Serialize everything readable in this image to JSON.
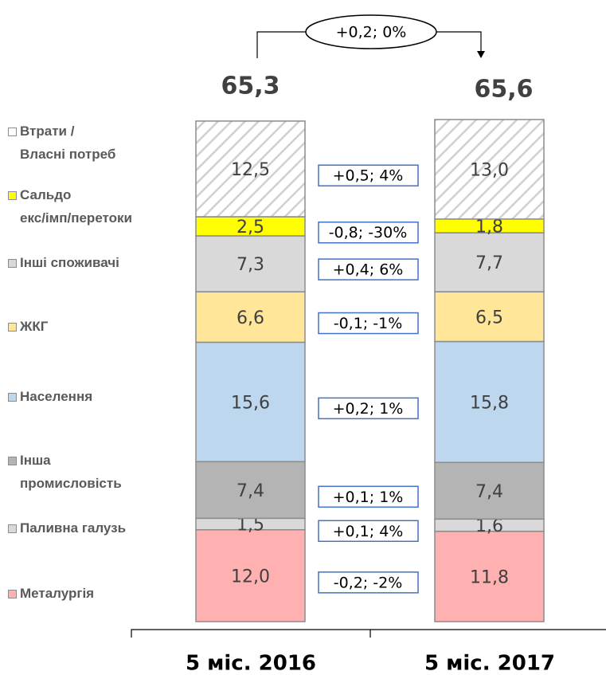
{
  "chart_data": {
    "type": "stacked-bar",
    "categories": [
      "5 міс. 2016",
      "5 міс. 2017"
    ],
    "series": [
      {
        "name": "Металургія",
        "color": "#ffb0b0",
        "values": [
          12.0,
          11.8
        ],
        "value_labels": [
          "12,0",
          "11,8"
        ]
      },
      {
        "name": "Паливна галузь",
        "color": "#d9d9d9",
        "values": [
          1.5,
          1.6
        ],
        "value_labels": [
          "1,5",
          "1,6"
        ]
      },
      {
        "name": "Інша\nпромисловість",
        "color": "#b4b4b4",
        "values": [
          7.4,
          7.4
        ],
        "value_labels": [
          "7,4",
          "7,4"
        ]
      },
      {
        "name": "Населення",
        "color": "#bdd7ee",
        "values": [
          15.6,
          15.8
        ],
        "value_labels": [
          "15,6",
          "15,8"
        ]
      },
      {
        "name": "ЖКГ",
        "color": "#ffe699",
        "values": [
          6.6,
          6.5
        ],
        "value_labels": [
          "6,6",
          "6,5"
        ]
      },
      {
        "name": "Інші споживачі",
        "color": "#d9d9d9",
        "values": [
          7.3,
          7.7
        ],
        "value_labels": [
          "7,3",
          "7,7"
        ]
      },
      {
        "name": "Сальдо\nекс/імп/перетоки",
        "color": "#ffff00",
        "values": [
          2.5,
          1.8
        ],
        "value_labels": [
          "2,5",
          "1,8"
        ]
      },
      {
        "name": "Втрати /\nВласні потреб",
        "color": "hatch",
        "values": [
          12.5,
          13.0
        ],
        "value_labels": [
          "12,5",
          "13,0"
        ]
      }
    ],
    "changes": [
      "-0,2; -2%",
      "+0,1; 4%",
      "+0,1; 1%",
      "+0,2; 1%",
      "-0,1; -1%",
      "+0,4; 6%",
      "-0,8; -30%",
      "+0,5; 4%"
    ],
    "totals": [
      65.3,
      65.6
    ],
    "total_labels": [
      "65,3",
      "65,6"
    ],
    "total_change": "+0,2; 0%"
  }
}
